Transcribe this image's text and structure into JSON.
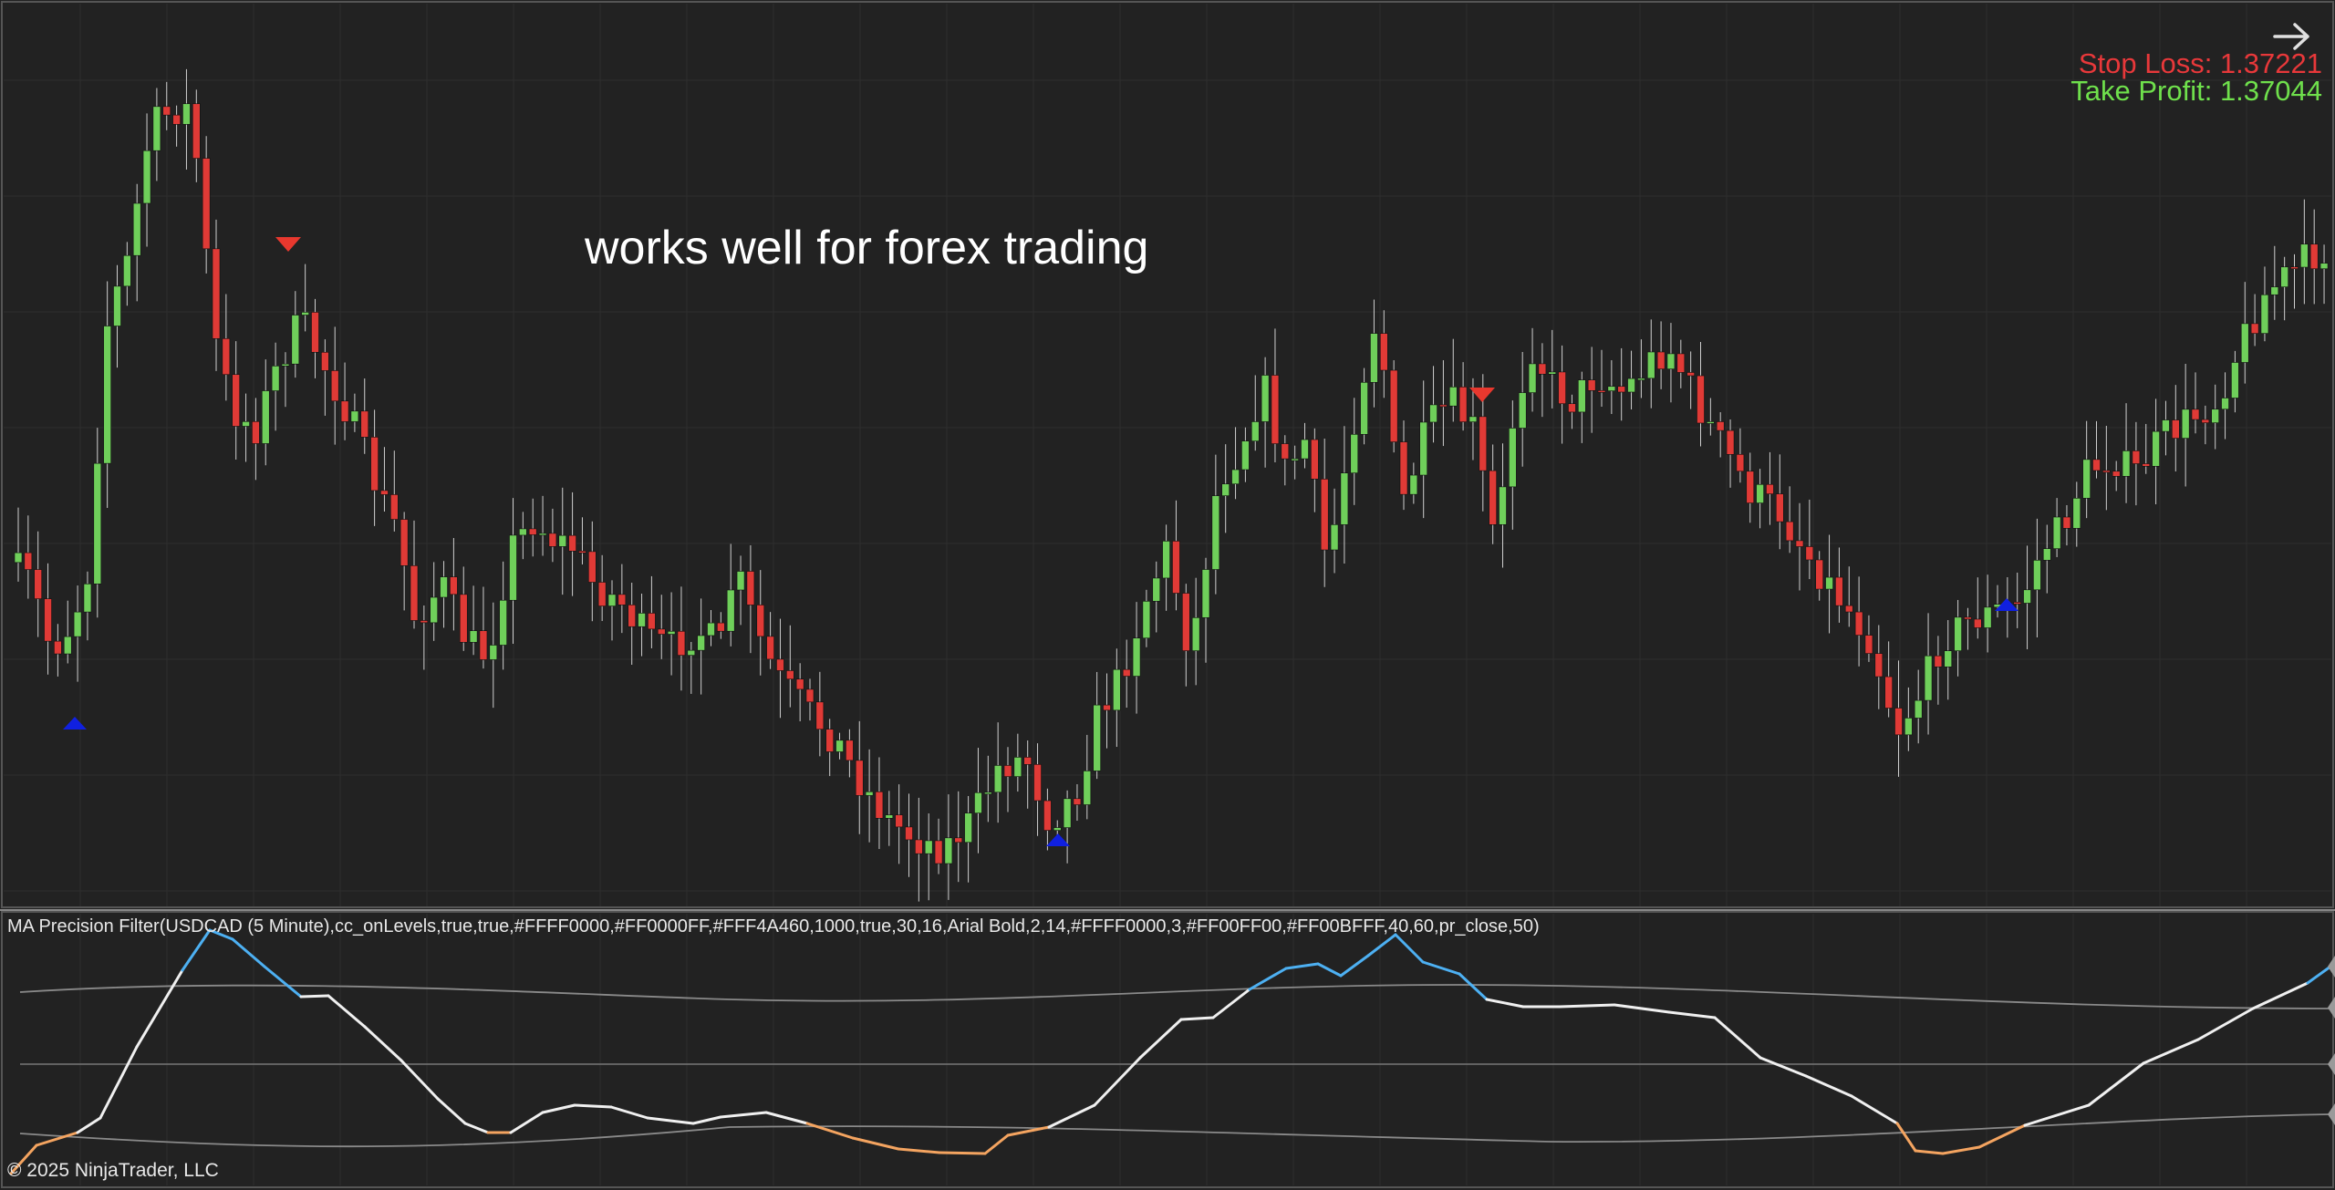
{
  "trade": {
    "stop_loss_label": "Stop Loss: 1.37221",
    "take_profit_label": "Take Profit: 1.37044"
  },
  "annotation_text": "works well for forex trading",
  "indicator_title": "MA Precision Filter(USDCAD (5 Minute),cc_onLevels,true,true,#FFFF0000,#FF0000FF,#FFF4A460,1000,true,30,16,Arial Bold,2,14,#FFFF0000,3,#FF00FF00,#FF00BFFF,40,60,pr_close,50)",
  "copyright": "© 2025 NinjaTrader, LLC",
  "colors": {
    "background": "#222222",
    "grid": "#2e2e2e",
    "bull": "#6fcf5a",
    "bear": "#e03a36",
    "sell_marker": "#e8382e",
    "buy_marker": "#1020e0",
    "osc_neutral": "#f0f0f0",
    "osc_high": "#4db0f2",
    "osc_low": "#f4a460",
    "band": "#8a8a8a"
  },
  "icons": {
    "navigate": "right-arrow-icon"
  },
  "chart_data": {
    "type": "candlestick",
    "symbol": "USDCAD",
    "timeframe": "5 Minute",
    "candles_ohlc_norm": [
      [
        0.601,
        0.586,
        0.623,
        0.586
      ],
      [
        0.597,
        0.592,
        0.626,
        0.592
      ],
      [
        0.591,
        0.551,
        0.57,
        0.57
      ],
      [
        0.604,
        0.54,
        0.615,
        0.54
      ],
      [
        0.558,
        0.427,
        0.558,
        0.427
      ],
      [
        0.392,
        0.425,
        0.432,
        0.425
      ],
      [
        0.442,
        0.483,
        0.499,
        0.483
      ],
      [
        0.446,
        0.496,
        0.5,
        0.496
      ],
      [
        0.444,
        0.451,
        0.453,
        0.451
      ],
      [
        0.54,
        0.486,
        0.554,
        0.486
      ],
      [
        0.509,
        0.498,
        0.483,
        0.498
      ],
      [
        0.584,
        0.607,
        0.619,
        0.607
      ],
      [
        0.649,
        0.708,
        0.705,
        0.708
      ],
      [
        0.677,
        0.668,
        0.647,
        0.668
      ],
      [
        0.671,
        0.719,
        0.715,
        0.719
      ],
      [
        0.769,
        0.752,
        0.743,
        0.752
      ],
      [
        0.777,
        0.803,
        0.781,
        0.803
      ],
      [
        0.813,
        0.805,
        0.81,
        0.805
      ],
      [
        0.782,
        0.738,
        0.729,
        0.738
      ],
      [
        0.685,
        0.722,
        0.722,
        0.722
      ],
      [
        0.73,
        0.779,
        0.77,
        0.779
      ],
      [
        0.718,
        0.678,
        0.685,
        0.678
      ],
      [
        0.682,
        0.647,
        0.673,
        0.647
      ]
    ],
    "markers": [
      {
        "type": "sell",
        "bar": "peak-1"
      },
      {
        "type": "buy",
        "bar": "trough-1"
      },
      {
        "type": "buy",
        "bar": "trough-2"
      },
      {
        "type": "sell",
        "bar": "peak-2"
      },
      {
        "type": "buy",
        "bar": "trough-3"
      }
    ],
    "oscillator": {
      "name": "MA Precision Filter",
      "upper_level": 60,
      "lower_level": 40,
      "source": "pr_close",
      "period": 50
    }
  }
}
